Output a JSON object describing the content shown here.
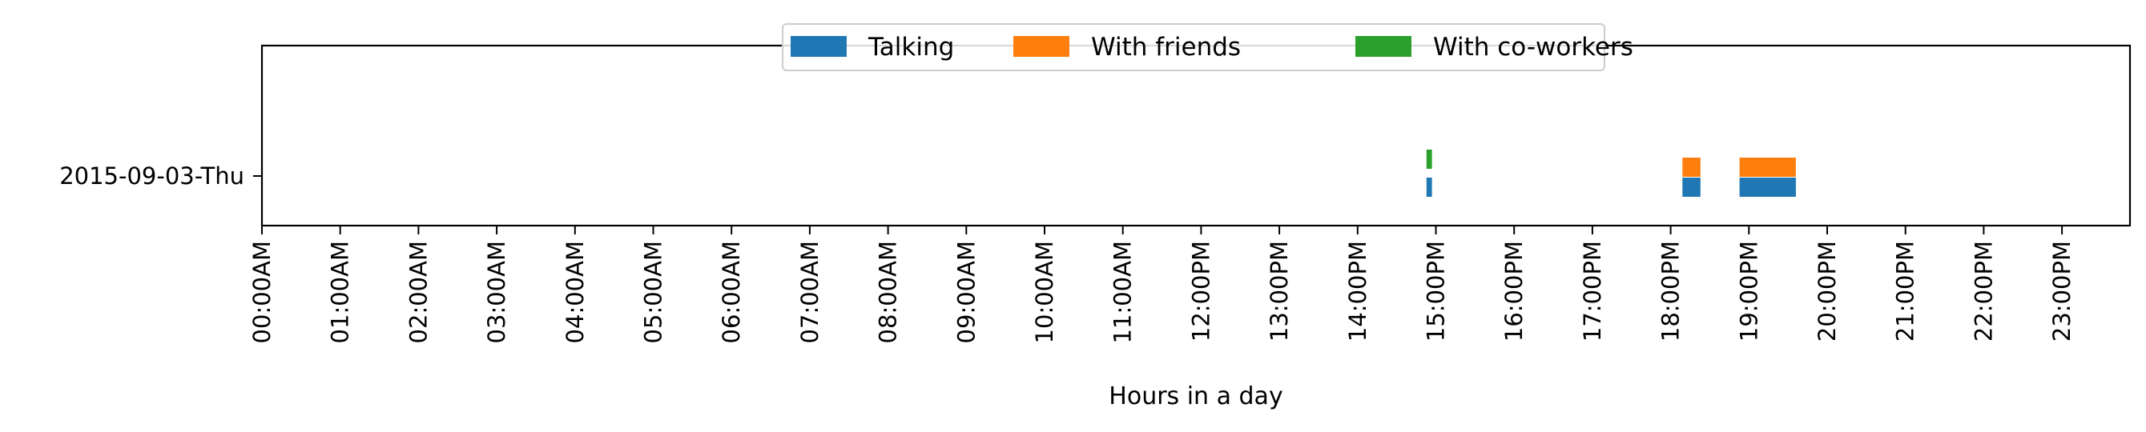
{
  "chart_data": {
    "type": "bar",
    "orientation": "horizontal-timeline",
    "title": "",
    "xlabel": "Hours in a day",
    "ylabel": "",
    "xlim": [
      0,
      24
    ],
    "grid": false,
    "legend_position": "top-center",
    "categories": [
      "2015-09-03-Thu"
    ],
    "x_tick_labels": [
      "00:00AM",
      "01:00AM",
      "02:00AM",
      "03:00AM",
      "04:00AM",
      "05:00AM",
      "06:00AM",
      "07:00AM",
      "08:00AM",
      "09:00AM",
      "10:00AM",
      "11:00AM",
      "12:00PM",
      "13:00PM",
      "14:00PM",
      "15:00PM",
      "16:00PM",
      "17:00PM",
      "18:00PM",
      "19:00PM",
      "20:00PM",
      "21:00PM",
      "22:00PM",
      "23:00PM"
    ],
    "series": [
      {
        "name": "Talking",
        "color": "#1f77b4",
        "intervals": [
          {
            "category": "2015-09-03-Thu",
            "start": 14.88,
            "end": 14.95
          },
          {
            "category": "2015-09-03-Thu",
            "start": 18.15,
            "end": 18.38
          },
          {
            "category": "2015-09-03-Thu",
            "start": 18.88,
            "end": 19.6
          }
        ]
      },
      {
        "name": "With friends",
        "color": "#ff7f0e",
        "intervals": [
          {
            "category": "2015-09-03-Thu",
            "start": 18.15,
            "end": 18.38
          },
          {
            "category": "2015-09-03-Thu",
            "start": 18.88,
            "end": 19.6
          }
        ]
      },
      {
        "name": "With co-workers",
        "color": "#2ca02c",
        "intervals": [
          {
            "category": "2015-09-03-Thu",
            "start": 14.88,
            "end": 14.95
          }
        ]
      }
    ]
  }
}
